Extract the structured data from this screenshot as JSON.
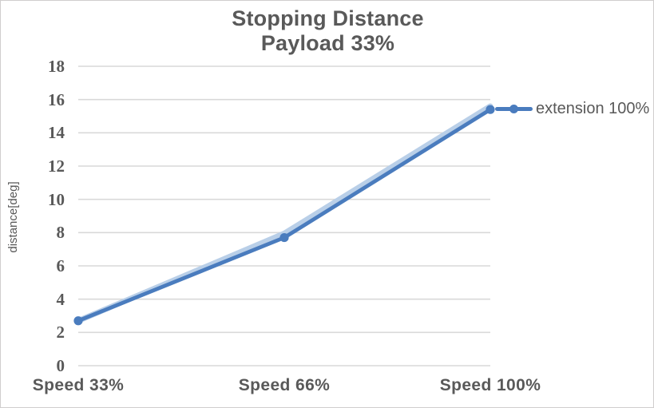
{
  "title": {
    "line1": "Stopping Distance",
    "line2": "Payload 33%"
  },
  "colors": {
    "line": "#4a7cbe",
    "band": "#b9cfe8",
    "gridline": "#d9d9d9",
    "text": "#595959",
    "border": "#d0cece",
    "background": "#ffffff"
  },
  "chart_data": {
    "type": "line",
    "title": "Stopping Distance",
    "subtitle": "Payload 33%",
    "categories": [
      "Speed 33%",
      "Speed 66%",
      "Speed 100%"
    ],
    "series": [
      {
        "name": "extension 100%",
        "values": [
          2.7,
          7.7,
          15.4
        ],
        "marker": "circle"
      }
    ],
    "underlay_band_values": [
      2.7,
      7.95,
      15.6
    ],
    "xlabel": "",
    "ylabel": "distance[deg]",
    "ylim": [
      0,
      18
    ],
    "yticks": [
      0,
      2,
      4,
      6,
      8,
      10,
      12,
      14,
      16,
      18
    ],
    "grid": "horizontal",
    "legend_position": "right-of-last-point"
  }
}
